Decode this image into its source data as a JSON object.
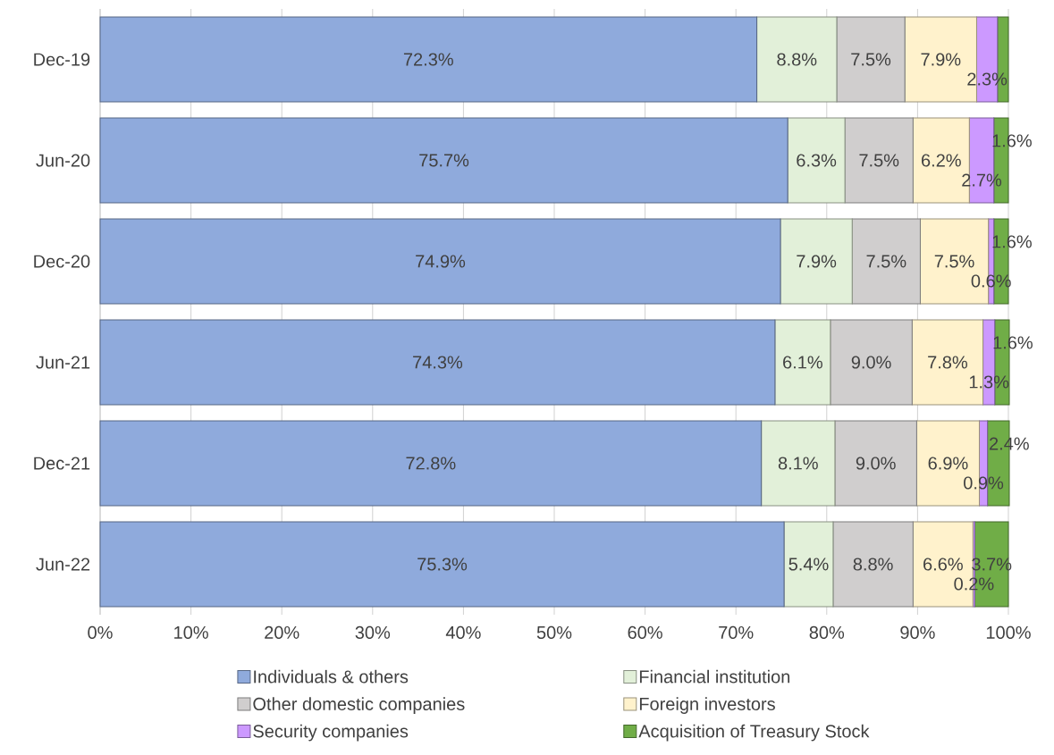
{
  "chart_data": {
    "type": "bar",
    "orientation": "horizontal",
    "stacked": true,
    "categories": [
      "Dec-19",
      "Jun-20",
      "Dec-20",
      "Jun-21",
      "Dec-21",
      "Jun-22"
    ],
    "series": [
      {
        "name": "Individuals & others",
        "color": "#8faadc",
        "values": [
          72.3,
          75.7,
          74.9,
          74.3,
          72.8,
          75.3
        ],
        "value_labels": [
          "72.3%",
          "75.7%",
          "74.9%",
          "74.3%",
          "72.8%",
          "75.3%"
        ]
      },
      {
        "name": "Financial institution",
        "color": "#e2f0d9",
        "values": [
          8.8,
          6.3,
          7.9,
          6.1,
          8.1,
          5.4
        ],
        "value_labels": [
          "8.8%",
          "6.3%",
          "7.9%",
          "6.1%",
          "8.1%",
          "5.4%"
        ]
      },
      {
        "name": "Other domestic companies",
        "color": "#d0cece",
        "values": [
          7.5,
          7.5,
          7.5,
          9.0,
          9.0,
          8.8
        ],
        "value_labels": [
          "7.5%",
          "7.5%",
          "7.5%",
          "9.0%",
          "9.0%",
          "8.8%"
        ]
      },
      {
        "name": "Foreign investors",
        "color": "#fff2cc",
        "values": [
          7.9,
          6.2,
          7.5,
          7.8,
          6.9,
          6.6
        ],
        "value_labels": [
          "7.9%",
          "6.2%",
          "7.5%",
          "7.8%",
          "6.9%",
          "6.6%"
        ]
      },
      {
        "name": "Security companies",
        "color": "#cc99ff",
        "values": [
          2.3,
          2.7,
          0.6,
          1.3,
          0.9,
          0.2
        ],
        "value_labels": [
          "2.3%",
          "2.7%",
          "0.6%",
          "1.3%",
          "0.9%",
          "0.2%"
        ]
      },
      {
        "name": "Acquisition of Treasury Stock",
        "color": "#70ad47",
        "values": [
          1.2,
          1.6,
          1.6,
          1.6,
          2.4,
          3.7
        ],
        "value_labels": [
          null,
          "1.6%",
          "1.6%",
          "1.6%",
          "2.4%",
          "3.7%"
        ]
      }
    ],
    "xlim": [
      0,
      100
    ],
    "xticks": [
      {
        "value": 0,
        "label": "0%"
      },
      {
        "value": 10,
        "label": "10%"
      },
      {
        "value": 20,
        "label": "20%"
      },
      {
        "value": 30,
        "label": "30%"
      },
      {
        "value": 40,
        "label": "40%"
      },
      {
        "value": 50,
        "label": "50%"
      },
      {
        "value": 60,
        "label": "60%"
      },
      {
        "value": 70,
        "label": "70%"
      },
      {
        "value": 80,
        "label": "80%"
      },
      {
        "value": 90,
        "label": "90%"
      },
      {
        "value": 100,
        "label": "100%"
      }
    ],
    "grid": "x",
    "legend": "bottom"
  }
}
